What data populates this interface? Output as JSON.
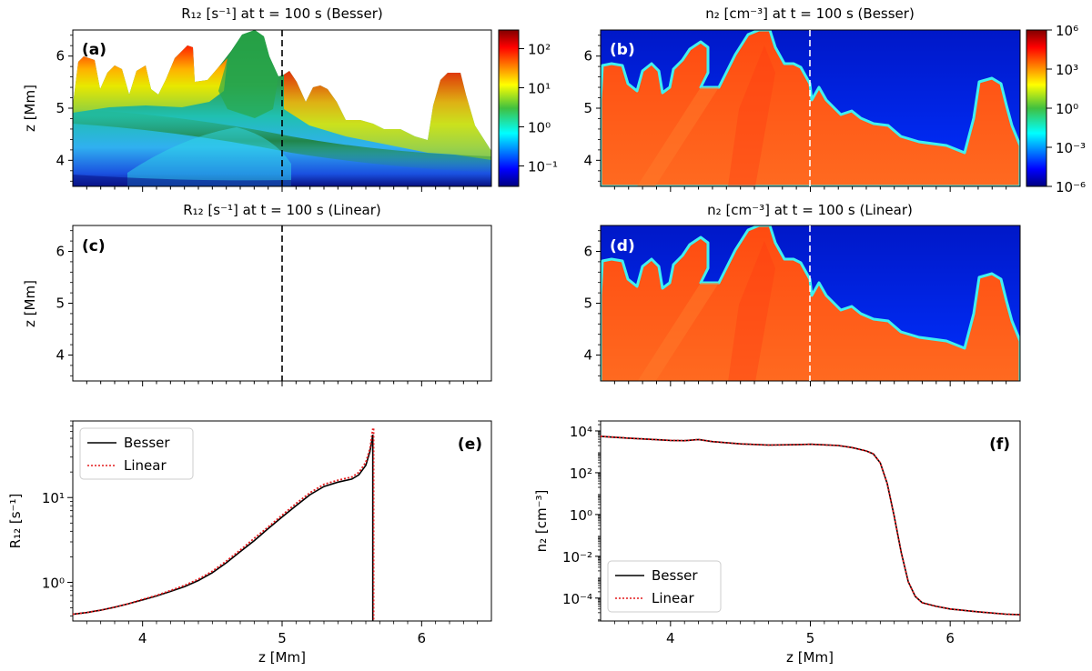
{
  "chart_data": [
    {
      "id": "a",
      "type": "heatmap",
      "panel_label": "(a)",
      "title": "R₁₂ [s⁻¹] at t = 100 s (Besser)",
      "ylabel": "z [Mm]",
      "yticks": [
        "4",
        "5",
        "6"
      ],
      "ylim": [
        3.5,
        6.5
      ],
      "dashed_line_x": 0.5,
      "colorbar": {
        "scale": "log",
        "ticks": [
          "10⁻¹",
          "10⁰",
          "10¹",
          "10²"
        ],
        "range": [
          0.03,
          300
        ],
        "colormap": "jet"
      }
    },
    {
      "id": "b",
      "type": "heatmap",
      "panel_label": "(b)",
      "title": "n₂ [cm⁻³] at t = 100 s (Besser)",
      "yticks": [
        "4",
        "5",
        "6"
      ],
      "ylim": [
        3.5,
        6.5
      ],
      "dashed_line_x": 0.5,
      "colorbar": {
        "scale": "log",
        "ticks": [
          "10⁶",
          "10³",
          "10⁰",
          "10⁻³",
          "10⁻⁶"
        ],
        "range": [
          1e-06,
          1000000.0
        ],
        "colormap": "jet"
      }
    },
    {
      "id": "c",
      "type": "heatmap",
      "panel_label": "(c)",
      "title": "R₁₂ [s⁻¹] at t = 100 s (Linear)",
      "ylabel": "z [Mm]",
      "yticks": [
        "4",
        "5",
        "6"
      ],
      "ylim": [
        3.5,
        6.5
      ],
      "dashed_line_x": 0.5
    },
    {
      "id": "d",
      "type": "heatmap",
      "panel_label": "(d)",
      "title": "n₂ [cm⁻³] at t = 100 s (Linear)",
      "yticks": [
        "4",
        "5",
        "6"
      ],
      "ylim": [
        3.5,
        6.5
      ],
      "dashed_line_x": 0.5
    },
    {
      "id": "e",
      "type": "line",
      "panel_label": "(e)",
      "xlabel": "z [Mm]",
      "ylabel": "R₁₂ [s⁻¹]",
      "xlim": [
        3.5,
        6.5
      ],
      "ylim": [
        0.35,
        80
      ],
      "yscale": "log",
      "xticks": [
        "4",
        "5",
        "6"
      ],
      "yticks": [
        "10⁰",
        "10¹"
      ],
      "legend_position": "top-left",
      "x": [
        3.5,
        3.6,
        3.7,
        3.8,
        3.9,
        4.0,
        4.1,
        4.2,
        4.3,
        4.4,
        4.5,
        4.6,
        4.7,
        4.8,
        4.9,
        5.0,
        5.1,
        5.2,
        5.3,
        5.4,
        5.5,
        5.55,
        5.6,
        5.63,
        5.65
      ],
      "series": [
        {
          "name": "Besser",
          "style": "solid",
          "color": "#000000",
          "values": [
            0.42,
            0.44,
            0.47,
            0.51,
            0.56,
            0.62,
            0.69,
            0.78,
            0.89,
            1.05,
            1.3,
            1.7,
            2.3,
            3.1,
            4.3,
            5.9,
            8.0,
            10.8,
            13.5,
            15.2,
            16.5,
            18.5,
            24,
            35,
            55
          ]
        },
        {
          "name": "Linear",
          "style": "dotted",
          "color": "#e41a1c",
          "values": [
            0.42,
            0.44,
            0.47,
            0.51,
            0.56,
            0.63,
            0.7,
            0.8,
            0.92,
            1.09,
            1.35,
            1.78,
            2.4,
            3.3,
            4.5,
            6.2,
            8.5,
            11.4,
            14.3,
            16.0,
            17.5,
            19.8,
            26,
            38,
            65
          ]
        }
      ]
    },
    {
      "id": "f",
      "type": "line",
      "panel_label": "(f)",
      "xlabel": "z [Mm]",
      "ylabel": "n₂ [cm⁻³]",
      "xlim": [
        3.5,
        6.5
      ],
      "ylim": [
        8e-06,
        30000
      ],
      "yscale": "log",
      "xticks": [
        "4",
        "5",
        "6"
      ],
      "yticks": [
        "10⁴",
        "10²",
        "10⁰",
        "10⁻²",
        "10⁻⁴"
      ],
      "legend_position": "bottom-left",
      "x": [
        3.5,
        3.7,
        3.9,
        4.0,
        4.1,
        4.2,
        4.3,
        4.5,
        4.7,
        4.9,
        5.0,
        5.2,
        5.3,
        5.4,
        5.45,
        5.5,
        5.55,
        5.6,
        5.65,
        5.7,
        5.75,
        5.8,
        5.9,
        6.0,
        6.2,
        6.4,
        6.5
      ],
      "series": [
        {
          "name": "Besser",
          "style": "solid",
          "color": "#000000",
          "values": [
            5500,
            4500,
            3800,
            3500,
            3400,
            3900,
            3100,
            2400,
            2100,
            2200,
            2300,
            2000,
            1600,
            1100,
            800,
            300,
            30,
            0.8,
            0.015,
            0.0006,
            0.00012,
            6e-05,
            4e-05,
            3e-05,
            2.2e-05,
            1.7e-05,
            1.6e-05
          ]
        },
        {
          "name": "Linear",
          "style": "dotted",
          "color": "#e41a1c",
          "values": [
            5500,
            4500,
            3800,
            3500,
            3400,
            3900,
            3100,
            2400,
            2100,
            2200,
            2300,
            2000,
            1600,
            1100,
            800,
            300,
            30,
            0.8,
            0.015,
            0.0006,
            0.00012,
            6e-05,
            4e-05,
            3e-05,
            2.2e-05,
            1.7e-05,
            1.6e-05
          ]
        }
      ]
    }
  ]
}
